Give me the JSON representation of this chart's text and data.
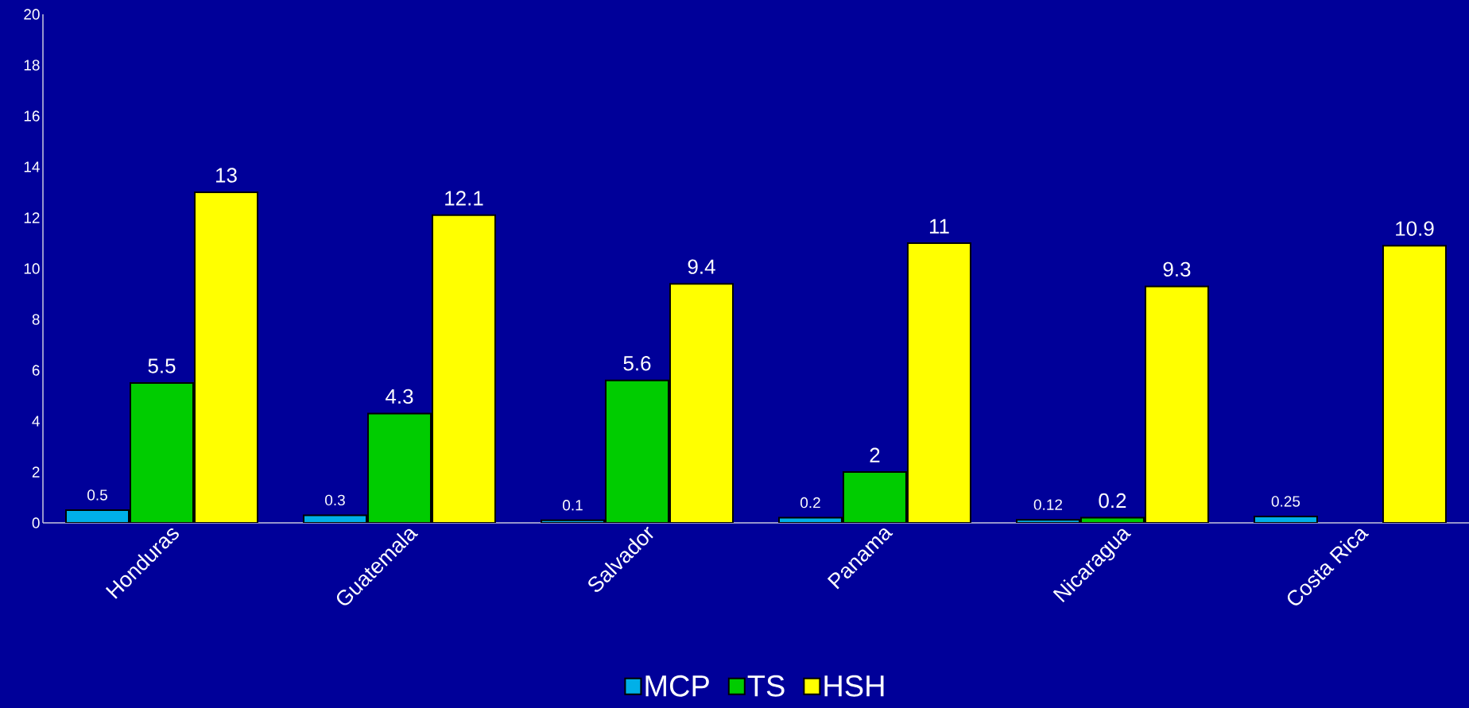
{
  "chart_data": {
    "type": "bar",
    "categories": [
      "Honduras",
      "Guatemala",
      "Salvador",
      "Panama",
      "Nicaragua",
      "Costa Rica"
    ],
    "series": [
      {
        "name": "MCP",
        "color": "#00b0e8",
        "values": [
          0.5,
          0.3,
          0.1,
          0.2,
          0.12,
          0.25
        ]
      },
      {
        "name": "TS",
        "color": "#00cc00",
        "values": [
          5.5,
          4.3,
          5.6,
          2,
          0.2,
          null
        ]
      },
      {
        "name": "HSH",
        "color": "#ffff00",
        "values": [
          13,
          12.1,
          9.4,
          11,
          9.3,
          10.9
        ]
      }
    ],
    "ylim": [
      0,
      20
    ],
    "yticks": [
      0,
      2,
      4,
      6,
      8,
      10,
      12,
      14,
      16,
      18,
      20
    ],
    "grid": false,
    "legend": "bottom",
    "data_labels": true
  }
}
